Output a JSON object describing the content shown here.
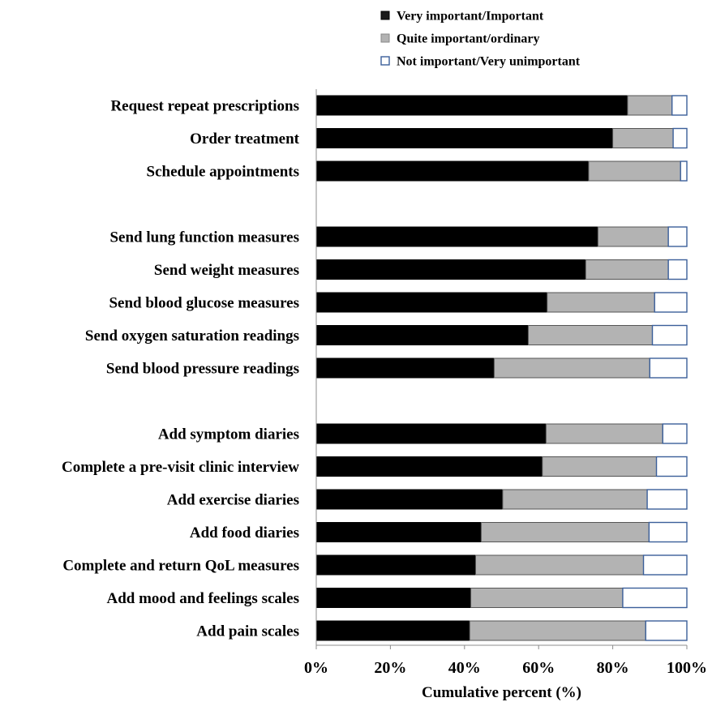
{
  "chart_data": {
    "type": "bar",
    "orientation": "horizontal",
    "stacked": true,
    "xlabel": "Cumulative percent (%)",
    "ylabel": "",
    "xlim": [
      0,
      100
    ],
    "x_ticks": [
      "0%",
      "20%",
      "40%",
      "60%",
      "80%",
      "100%"
    ],
    "grid": false,
    "legend_position": "top-right",
    "categories": [
      "Request repeat prescriptions",
      "Order treatment",
      "Schedule appointments",
      "Send lung function measures",
      "Send weight measures",
      "Send blood glucose measures",
      "Send oxygen saturation readings",
      "Send blood pressure readings",
      "Add symptom diaries",
      "Complete a pre-visit clinic interview",
      "Add exercise diaries",
      "Add food diaries",
      "Complete and return QoL measures",
      "Add mood and feelings scales",
      "Add pain scales"
    ],
    "groups": [
      [
        0,
        1,
        2
      ],
      [
        3,
        4,
        5,
        6,
        7
      ],
      [
        8,
        9,
        10,
        11,
        12,
        13,
        14
      ]
    ],
    "series": [
      {
        "name": "Very important/Important",
        "color": "#000000",
        "values": [
          84,
          80,
          73.5,
          76,
          72.7,
          62.3,
          57.2,
          48,
          62,
          61,
          50.3,
          44.5,
          43,
          41.7,
          41.4
        ]
      },
      {
        "name": "Quite important/ordinary",
        "color": "#b3b3b3",
        "values": [
          12,
          16.3,
          24.8,
          19,
          22.3,
          29,
          33.5,
          42,
          31.5,
          30.8,
          39,
          45.3,
          45.3,
          41,
          47.5
        ]
      },
      {
        "name": "Not important/Very unimportant",
        "color": "#ffffff",
        "values": [
          4,
          3.7,
          1.7,
          5,
          5,
          8.7,
          9.3,
          10,
          6.5,
          8.2,
          10.7,
          10.2,
          11.7,
          17.3,
          11.1
        ]
      }
    ]
  }
}
